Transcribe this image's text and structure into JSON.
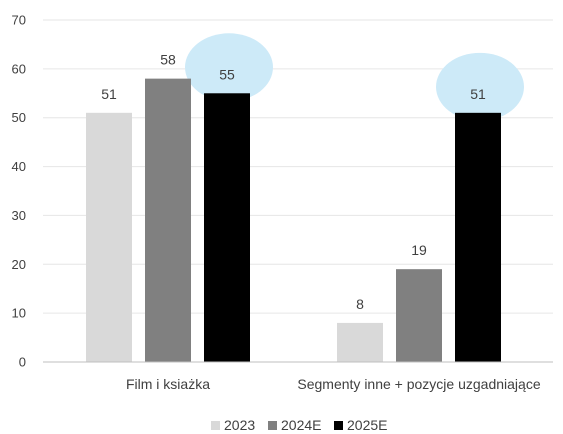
{
  "colors": {
    "2023": "#d9d9d9",
    "2024E": "#808080",
    "2025E": "#000000",
    "highlight": "#cdeaf8",
    "grid": "#e6e6e6",
    "axis": "#bfbfbf"
  },
  "chart_data": {
    "type": "bar",
    "categories": [
      "Film i ksiażka",
      "Segmenty inne + pozycje uzgadniające"
    ],
    "series": [
      {
        "name": "2023",
        "values": [
          51,
          8
        ]
      },
      {
        "name": "2024E",
        "values": [
          58,
          19
        ]
      },
      {
        "name": "2025E",
        "values": [
          55,
          51
        ]
      }
    ],
    "data_labels": [
      [
        "51",
        "58",
        "55"
      ],
      [
        "8",
        "19",
        "51"
      ]
    ],
    "highlighted": [
      {
        "category": 0,
        "series": 2
      },
      {
        "category": 1,
        "series": 2
      }
    ],
    "ylim": [
      0,
      70
    ],
    "yticks": [
      0,
      10,
      20,
      30,
      40,
      50,
      60,
      70
    ],
    "grid": true,
    "legend_position": "bottom",
    "title": "",
    "xlabel": "",
    "ylabel": ""
  }
}
